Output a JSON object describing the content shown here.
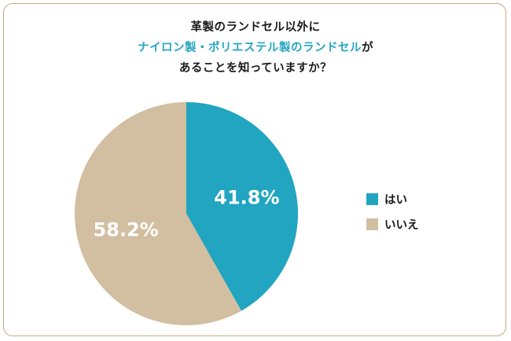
{
  "title": {
    "line1": "革製のランドセル以外に",
    "line2_accent": "ナイロン製・ポリエステル製のランドセル",
    "line2_rest": "が",
    "line3": "あることを知っていますか？"
  },
  "colors": {
    "accent_text": "#26a6c2",
    "border": "#c8ad7f"
  },
  "chart_data": {
    "type": "pie",
    "slices": [
      {
        "label": "はい",
        "value": 41.8,
        "display": "41.8%",
        "color": "#21a5c0"
      },
      {
        "label": "いいえ",
        "value": 58.2,
        "display": "58.2%",
        "color": "#d2bea0"
      }
    ],
    "start_angle": "top",
    "direction": "clockwise",
    "legend_position": "right"
  }
}
